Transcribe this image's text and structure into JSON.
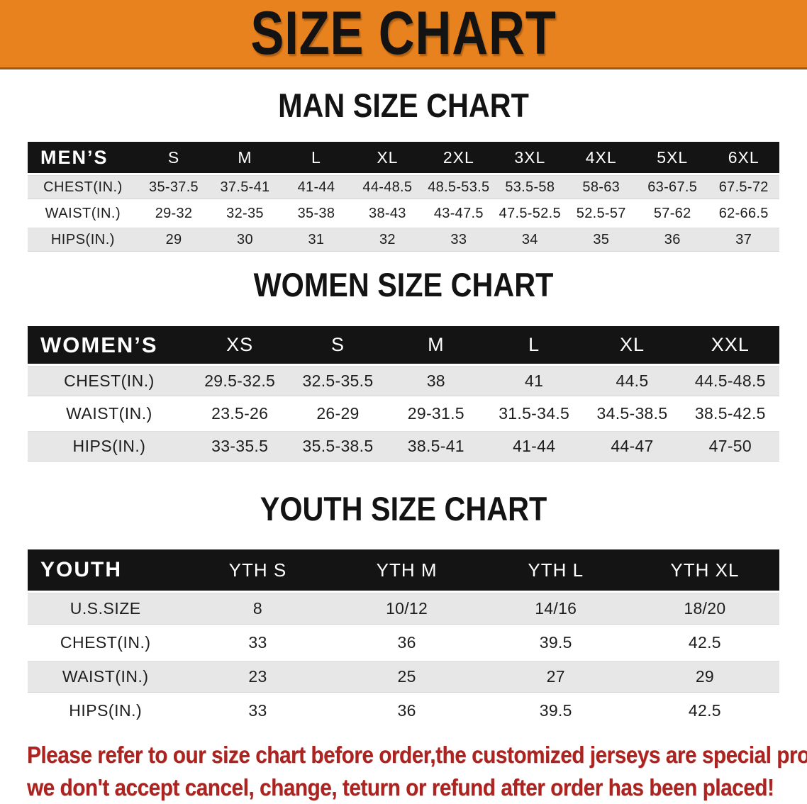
{
  "banner": {
    "title": "SIZE CHART"
  },
  "colors": {
    "banner_bg": "#e8821e",
    "banner_edge": "#9c5a17",
    "table_header_bg": "#141414",
    "row_alt_gray": "#e7e7e7",
    "note_red": "#ad231f"
  },
  "sections": [
    {
      "id": "man",
      "title": "MAN SIZE CHART",
      "corner_label": "MEN’S",
      "columns": [
        "S",
        "M",
        "L",
        "XL",
        "2XL",
        "3XL",
        "4XL",
        "5XL",
        "6XL"
      ],
      "rows": [
        {
          "label": "CHEST(IN.)",
          "values": [
            "35-37.5",
            "37.5-41",
            "41-44",
            "44-48.5",
            "48.5-53.5",
            "53.5-58",
            "58-63",
            "63-67.5",
            "67.5-72"
          ]
        },
        {
          "label": "WAIST(IN.)",
          "values": [
            "29-32",
            "32-35",
            "35-38",
            "38-43",
            "43-47.5",
            "47.5-52.5",
            "52.5-57",
            "57-62",
            "62-66.5"
          ]
        },
        {
          "label": "HIPS(IN.)",
          "values": [
            "29",
            "30",
            "31",
            "32",
            "33",
            "34",
            "35",
            "36",
            "37"
          ]
        }
      ]
    },
    {
      "id": "women",
      "title": "WOMEN SIZE CHART",
      "corner_label": "WOMEN’S",
      "columns": [
        "XS",
        "S",
        "M",
        "L",
        "XL",
        "XXL"
      ],
      "rows": [
        {
          "label": "CHEST(IN.)",
          "values": [
            "29.5-32.5",
            "32.5-35.5",
            "38",
            "41",
            "44.5",
            "44.5-48.5"
          ]
        },
        {
          "label": "WAIST(IN.)",
          "values": [
            "23.5-26",
            "26-29",
            "29-31.5",
            "31.5-34.5",
            "34.5-38.5",
            "38.5-42.5"
          ]
        },
        {
          "label": "HIPS(IN.)",
          "values": [
            "33-35.5",
            "35.5-38.5",
            "38.5-41",
            "41-44",
            "44-47",
            "47-50"
          ]
        }
      ]
    },
    {
      "id": "youth",
      "title": "YOUTH SIZE CHART",
      "corner_label": "YOUTH",
      "columns": [
        "YTH S",
        "YTH M",
        "YTH L",
        "YTH XL"
      ],
      "rows": [
        {
          "label": "U.S.SIZE",
          "values": [
            "8",
            "10/12",
            "14/16",
            "18/20"
          ]
        },
        {
          "label": "CHEST(IN.)",
          "values": [
            "33",
            "36",
            "39.5",
            "42.5"
          ]
        },
        {
          "label": "WAIST(IN.)",
          "values": [
            "23",
            "25",
            "27",
            "29"
          ]
        },
        {
          "label": "HIPS(IN.)",
          "values": [
            "33",
            "36",
            "39.5",
            "42.5"
          ]
        }
      ]
    }
  ],
  "note": {
    "line1": "Please refer to our size chart before order,the customized jerseys are special products,",
    "line2": "we don't accept cancel, change, teturn or refund after order has been placed!"
  }
}
